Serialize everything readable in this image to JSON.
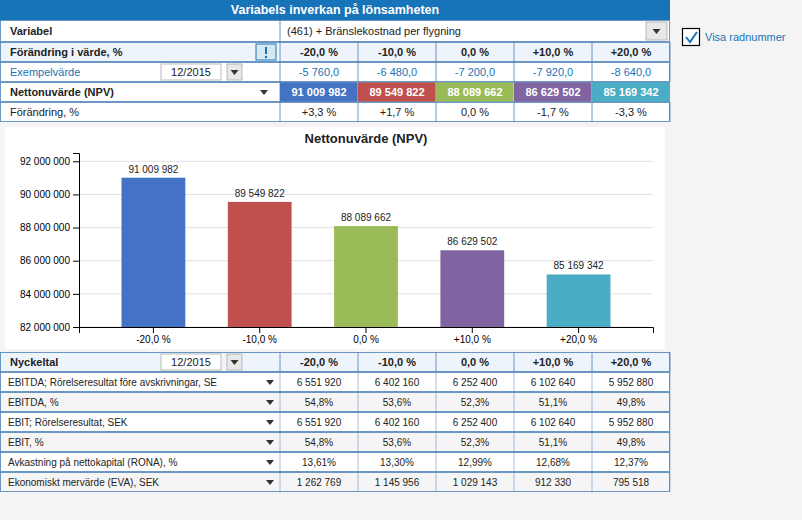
{
  "chart_data": {
    "type": "bar",
    "title": "Nettonuvärde (NPV)",
    "categories": [
      "-20,0 %",
      "-10,0 %",
      "0,0 %",
      "+10,0 %",
      "+20,0 %"
    ],
    "values": [
      91009982,
      89549822,
      88089662,
      86629502,
      85169342
    ],
    "value_labels": [
      "91 009 982",
      "89 549 822",
      "88 089 662",
      "86 629 502",
      "85 169 342"
    ],
    "colors": [
      "#4472C4",
      "#C0504D",
      "#9BBB59",
      "#8064A2",
      "#4BACC6"
    ],
    "ylim": [
      82000000,
      92500000
    ],
    "yticks": [
      {
        "value": 82000000,
        "label": "82 000 000"
      },
      {
        "value": 84000000,
        "label": "84 000 000"
      },
      {
        "value": 86000000,
        "label": "86 000 000"
      },
      {
        "value": 88000000,
        "label": "88 000 000"
      },
      {
        "value": 90000000,
        "label": "90 000 000"
      },
      {
        "value": 92000000,
        "label": "92 000 000"
      }
    ],
    "grid": true,
    "data_labels": true
  },
  "panel": {
    "title": "Variabels inverkan på lönsamheten",
    "checkbox_label": "Visa radnummer",
    "variable": {
      "label": "Variabel",
      "value": "(461) + Bränslekostnad per flygning"
    },
    "change_in_value": {
      "label": "Förändring i värde, %",
      "values": [
        "-20,0 %",
        "-10,0 %",
        "0,0 %",
        "+10,0 %",
        "+20,0 %"
      ]
    },
    "sample_value": {
      "label": "Exempelvärde",
      "date": "12/2015",
      "values": [
        "-5 760,0",
        "-6 480,0",
        "-7 200,0",
        "-7 920,0",
        "-8 640,0"
      ]
    },
    "npv": {
      "label": "Nettonuvärde (NPV)",
      "values": [
        "91 009 982",
        "89 549 822",
        "88 089 662",
        "86 629 502",
        "85 169 342"
      ],
      "colors": [
        "#4472C4",
        "#C0504D",
        "#9BBB59",
        "#8064A2",
        "#4BACC6"
      ]
    },
    "change_pct": {
      "label": "Förändring, %",
      "values": [
        "+3,3 %",
        "+1,7 %",
        "0,0 %",
        "-1,7 %",
        "-3,3 %"
      ]
    },
    "key_figures": {
      "label": "Nyckeltal",
      "date": "12/2015",
      "columns": [
        "-20,0 %",
        "-10,0 %",
        "0,0 %",
        "+10,0 %",
        "+20,0 %"
      ],
      "rows": [
        {
          "label": "EBITDA; Rörelseresultat före avskrivningar, SE",
          "values": [
            "6 551 920",
            "6 402 160",
            "6 252 400",
            "6 102 640",
            "5 952 880"
          ]
        },
        {
          "label": "EBITDA, %",
          "values": [
            "54,8%",
            "53,6%",
            "52,3%",
            "51,1%",
            "49,8%"
          ]
        },
        {
          "label": "EBIT; Rörelseresultat, SEK",
          "values": [
            "6 551 920",
            "6 402 160",
            "6 252 400",
            "6 102 640",
            "5 952 880"
          ]
        },
        {
          "label": "EBIT, %",
          "values": [
            "54,8%",
            "53,6%",
            "52,3%",
            "51,1%",
            "49,8%"
          ]
        },
        {
          "label": "Avkastning på nettokapital (RONA), %",
          "values": [
            "13,61%",
            "13,30%",
            "12,99%",
            "12,68%",
            "12,37%"
          ]
        },
        {
          "label": "Ekonomiskt mervärde (EVA), SEK",
          "values": [
            "1 262 769",
            "1 145 956",
            "1 029 143",
            "912 330",
            "795 518"
          ]
        }
      ]
    }
  }
}
